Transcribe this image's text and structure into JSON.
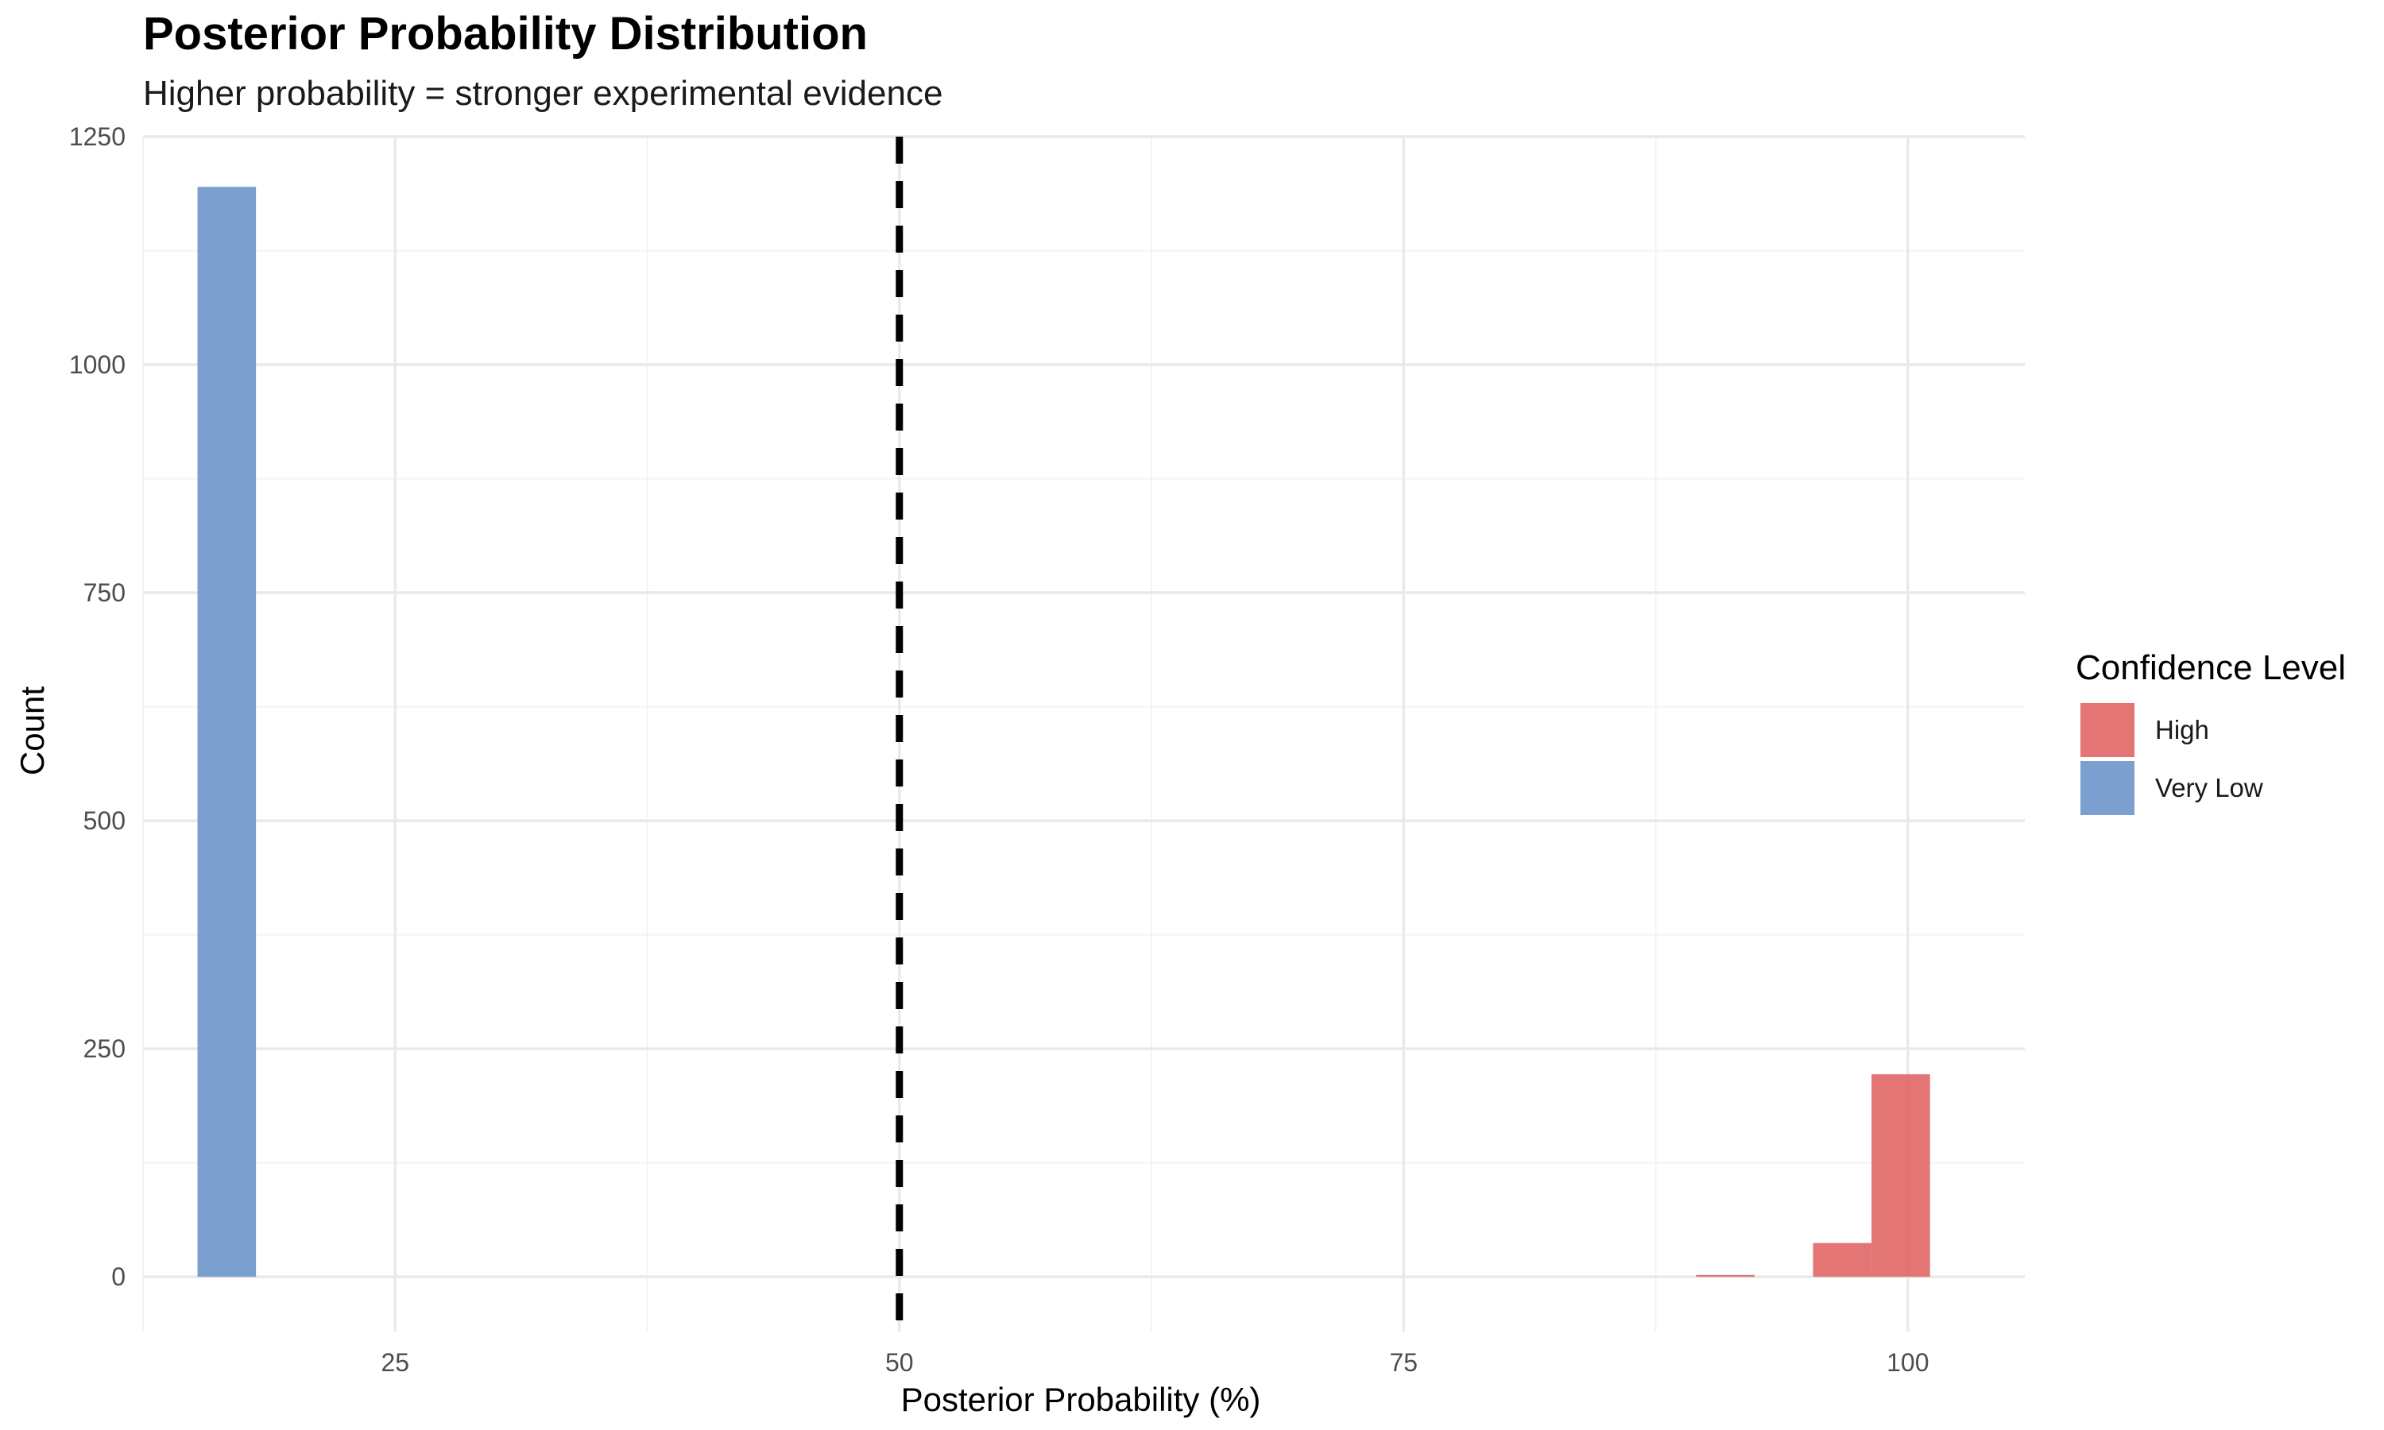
{
  "chart_data": {
    "type": "bar",
    "title": "Posterior Probability Distribution",
    "subtitle": "Higher probability = stronger experimental evidence",
    "xlabel": "Posterior Probability (%)",
    "ylabel": "Count",
    "xlim": [
      12.5,
      105.8
    ],
    "ylim": [
      -60,
      1250
    ],
    "x_ticks": [
      25,
      50,
      75,
      100
    ],
    "y_ticks": [
      0,
      250,
      500,
      750,
      1000,
      1250
    ],
    "x_minor_ticks": [
      12.5,
      37.5,
      62.5,
      87.5
    ],
    "y_minor_ticks": [
      125,
      375,
      625,
      875,
      1125
    ],
    "grid": true,
    "reference_line": {
      "x": 50,
      "style": "dashed",
      "color": "#000000"
    },
    "legend": {
      "title": "Confidence Level",
      "position": "right",
      "entries": [
        {
          "label": "High",
          "color": "#E06666"
        },
        {
          "label": "Very Low",
          "color": "#6D96CB"
        }
      ]
    },
    "series": [
      {
        "name": "Very Low",
        "color": "#6D96CB",
        "bins": [
          {
            "x0": 15.2,
            "x1": 18.1,
            "count": 1195
          }
        ]
      },
      {
        "name": "High",
        "color": "#E06666",
        "bins": [
          {
            "x0": 89.5,
            "x1": 92.4,
            "count": 2
          },
          {
            "x0": 95.3,
            "x1": 98.2,
            "count": 37
          },
          {
            "x0": 98.2,
            "x1": 101.1,
            "count": 222
          }
        ]
      }
    ]
  }
}
